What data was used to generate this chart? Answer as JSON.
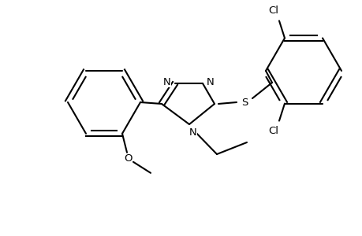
{
  "bg_color": "#ffffff",
  "line_color": "#000000",
  "line_width": 1.5,
  "font_size": 9.5,
  "figsize": [
    4.6,
    3.0
  ],
  "dpi": 100,
  "xlim": [
    0,
    460
  ],
  "ylim": [
    0,
    300
  ]
}
